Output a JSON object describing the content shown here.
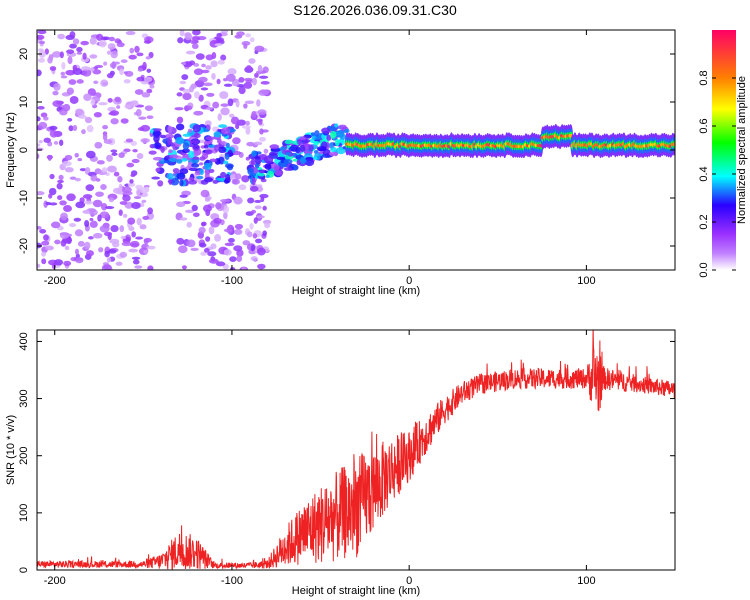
{
  "title": "S126.2026.036.09.31.C30",
  "colors": {
    "snr_line": "#ee2222",
    "axis": "#000000",
    "dot_purple": "#7b1fe0"
  },
  "chart_data": [
    {
      "type": "heatmap",
      "title": "S126.2026.036.09.31.C30",
      "xlabel": "Height of straight line (km)",
      "ylabel": "Frequency (Hz)",
      "xlim": [
        -210,
        150
      ],
      "ylim": [
        -25,
        25
      ],
      "xticks": [
        -200,
        -100,
        0,
        100
      ],
      "yticks": [
        -20,
        -10,
        0,
        10,
        20
      ],
      "xtick_labels": [
        "-200",
        "-100",
        "0",
        "100"
      ],
      "ytick_labels": [
        "-20",
        "-10",
        "0",
        "10",
        "20"
      ],
      "colorbar": {
        "label": "Normalized spectral amplitude",
        "range": [
          0,
          1
        ],
        "ticks": [
          0.0,
          0.2,
          0.4,
          0.6,
          0.8
        ],
        "tick_labels": [
          "0.0",
          "0.2",
          "0.4",
          "0.6",
          "0.8"
        ],
        "colormap": [
          "#ffffff",
          "#a040ff",
          "#2000ff",
          "#00ffff",
          "#00ff00",
          "#ffff00",
          "#ff8000",
          "#ff0066"
        ]
      },
      "features": [
        {
          "name": "scattered low-amplitude noise",
          "x_range": [
            -210,
            -145
          ],
          "freq_range": [
            -25,
            25
          ],
          "amplitude": 0.15
        },
        {
          "name": "scattered low-amplitude noise",
          "x_range": [
            -130,
            -80
          ],
          "freq_range": [
            -25,
            25
          ],
          "amplitude": 0.15
        },
        {
          "name": "signal cluster",
          "x_range": [
            -145,
            -100
          ],
          "freq_range": [
            -7,
            5
          ],
          "amplitude": 0.35
        },
        {
          "name": "rising signal segment",
          "x_range": [
            -90,
            -35
          ],
          "freq_range": [
            -8,
            6
          ],
          "amplitude": 0.4
        },
        {
          "name": "stable carrier",
          "x_range": [
            -35,
            150
          ],
          "freq_center": 1,
          "freq_width": 3,
          "amplitude": 0.9
        }
      ]
    },
    {
      "type": "line",
      "xlabel": "Height of straight line (km)",
      "ylabel": "SNR (10 * v/v)",
      "xlim": [
        -210,
        150
      ],
      "ylim": [
        0,
        420
      ],
      "xticks": [
        -200,
        -100,
        0,
        100
      ],
      "yticks": [
        0,
        100,
        200,
        300,
        400
      ],
      "xtick_labels": [
        "-200",
        "-100",
        "0",
        "100"
      ],
      "ytick_labels": [
        "0",
        "100",
        "200",
        "300",
        "400"
      ],
      "series": [
        {
          "name": "SNR",
          "x": [
            -210,
            -180,
            -150,
            -140,
            -130,
            -120,
            -110,
            -90,
            -80,
            -70,
            -60,
            -50,
            -40,
            -30,
            -20,
            -10,
            0,
            10,
            20,
            30,
            40,
            50,
            60,
            70,
            80,
            90,
            100,
            105,
            107,
            110,
            120,
            130,
            140,
            150
          ],
          "y": [
            10,
            10,
            10,
            15,
            35,
            30,
            8,
            8,
            10,
            40,
            65,
            80,
            95,
            110,
            140,
            175,
            200,
            240,
            280,
            310,
            325,
            330,
            335,
            335,
            335,
            335,
            335,
            340,
            330,
            335,
            330,
            325,
            320,
            315
          ],
          "noise": [
            6,
            6,
            6,
            15,
            35,
            30,
            5,
            5,
            8,
            35,
            55,
            70,
            80,
            90,
            75,
            60,
            45,
            35,
            25,
            20,
            18,
            18,
            18,
            18,
            18,
            18,
            18,
            70,
            60,
            20,
            18,
            15,
            15,
            15
          ]
        }
      ]
    }
  ]
}
